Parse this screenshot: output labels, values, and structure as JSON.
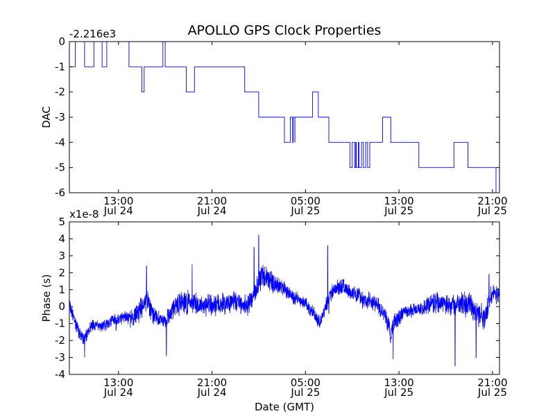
{
  "chart_data": [
    {
      "type": "line",
      "title": "APOLLO GPS Clock Properties",
      "ylabel": "DAC",
      "xlabel": "",
      "offset_label": "-2.216e3",
      "ylim": [
        -6,
        0
      ],
      "yticks": [
        "0",
        "-1",
        "-2",
        "-3",
        "-4",
        "-5",
        "-6"
      ],
      "xticks": [
        {
          "line1": "13:00",
          "line2": "Jul 24"
        },
        {
          "line1": "21:00",
          "line2": "Jul 24"
        },
        {
          "line1": "05:00",
          "line2": "Jul 25"
        },
        {
          "line1": "13:00",
          "line2": "Jul 25"
        },
        {
          "line1": "21:00",
          "line2": "Jul 25"
        }
      ],
      "xlim_hours": [
        8.8,
        45.6
      ],
      "xtick_hours": [
        13,
        21,
        29,
        37,
        45
      ],
      "series": [
        {
          "name": "DAC",
          "color": "#0000ff",
          "steps": [
            [
              8.8,
              -1
            ],
            [
              9.3,
              0
            ],
            [
              10.1,
              -1
            ],
            [
              10.9,
              0
            ],
            [
              11.6,
              -1
            ],
            [
              12.0,
              0
            ],
            [
              13.9,
              -1
            ],
            [
              15.0,
              -2
            ],
            [
              15.2,
              -1
            ],
            [
              16.8,
              0
            ],
            [
              17.0,
              -1
            ],
            [
              18.8,
              -2
            ],
            [
              19.5,
              -1
            ],
            [
              23.8,
              -2
            ],
            [
              25.0,
              -3
            ],
            [
              27.2,
              -4
            ],
            [
              28.1,
              -3
            ],
            [
              29.6,
              -2
            ],
            [
              30.1,
              -3
            ],
            [
              31.0,
              -4
            ],
            [
              32.8,
              -5
            ],
            [
              34.5,
              -4
            ],
            [
              35.6,
              -3
            ],
            [
              36.3,
              -4
            ],
            [
              38.7,
              -5
            ],
            [
              41.7,
              -4
            ],
            [
              42.9,
              -5
            ],
            [
              45.3,
              -6
            ]
          ],
          "glitches": [
            [
              11.9,
              12.6,
              0
            ],
            [
              12.7,
              13.6,
              0
            ],
            [
              19.8,
              20.4,
              -1
            ],
            [
              20.7,
              21.3,
              -1
            ],
            [
              21.5,
              22.2,
              -1
            ],
            [
              22.6,
              23.5,
              -1
            ],
            [
              25.6,
              26.9,
              -3
            ],
            [
              27.7,
              28.0,
              -3
            ],
            [
              31.5,
              32.6,
              -4
            ],
            [
              33.0,
              34.3,
              -4
            ],
            [
              36.8,
              38.4,
              -4
            ],
            [
              38.9,
              39.6,
              -5
            ],
            [
              40.2,
              41.4,
              -5
            ],
            [
              42.0,
              42.6,
              -4
            ]
          ]
        }
      ]
    },
    {
      "type": "line",
      "title": "",
      "ylabel": "Phase (s)",
      "xlabel": "Date (GMT)",
      "offset_label": "x1e-8",
      "ylim": [
        -4,
        5
      ],
      "yticks": [
        "5",
        "4",
        "3",
        "2",
        "1",
        "0",
        "-1",
        "-2",
        "-3",
        "-4"
      ],
      "xticks": [
        {
          "line1": "13:00",
          "line2": "Jul 24"
        },
        {
          "line1": "21:00",
          "line2": "Jul 24"
        },
        {
          "line1": "05:00",
          "line2": "Jul 25"
        },
        {
          "line1": "13:00",
          "line2": "Jul 25"
        },
        {
          "line1": "21:00",
          "line2": "Jul 25"
        }
      ],
      "xlim_hours": [
        8.8,
        45.6
      ],
      "xtick_hours": [
        13,
        21,
        29,
        37,
        45
      ],
      "series": [
        {
          "name": "Phase",
          "color": "#0000ff",
          "baseline": [
            [
              8.8,
              0.2
            ],
            [
              9.4,
              -1.2
            ],
            [
              10.0,
              -2.0
            ],
            [
              10.8,
              -1.0
            ],
            [
              11.5,
              -1.2
            ],
            [
              12.3,
              -0.9
            ],
            [
              13.5,
              -0.6
            ],
            [
              14.2,
              -0.7
            ],
            [
              15.0,
              0.0
            ],
            [
              15.5,
              0.3
            ],
            [
              16.0,
              -0.6
            ],
            [
              17.0,
              -0.8
            ],
            [
              18.0,
              0.1
            ],
            [
              19.0,
              0.3
            ],
            [
              20.0,
              0.1
            ],
            [
              21.0,
              0.0
            ],
            [
              22.0,
              0.2
            ],
            [
              23.0,
              0.3
            ],
            [
              24.0,
              0.0
            ],
            [
              24.6,
              0.7
            ],
            [
              25.3,
              1.8
            ],
            [
              26.0,
              1.6
            ],
            [
              27.0,
              1.1
            ],
            [
              28.0,
              0.6
            ],
            [
              29.0,
              0.2
            ],
            [
              29.6,
              -0.3
            ],
            [
              30.2,
              -1.0
            ],
            [
              30.9,
              0.3
            ],
            [
              31.4,
              1.0
            ],
            [
              32.2,
              1.2
            ],
            [
              33.0,
              0.8
            ],
            [
              34.0,
              0.4
            ],
            [
              35.0,
              0.2
            ],
            [
              35.8,
              -0.5
            ],
            [
              36.3,
              -1.7
            ],
            [
              36.7,
              -0.8
            ],
            [
              37.5,
              -0.3
            ],
            [
              38.5,
              -0.2
            ],
            [
              39.5,
              0.1
            ],
            [
              40.5,
              0.3
            ],
            [
              41.5,
              0.0
            ],
            [
              42.5,
              0.2
            ],
            [
              43.5,
              -0.2
            ],
            [
              44.3,
              -0.7
            ],
            [
              45.0,
              0.8
            ],
            [
              45.6,
              0.6
            ]
          ],
          "noise": [
            [
              8.8,
              0.5
            ],
            [
              11.0,
              0.5
            ],
            [
              13.0,
              0.4
            ],
            [
              15.0,
              0.9
            ],
            [
              16.5,
              0.5
            ],
            [
              18.5,
              0.9
            ],
            [
              21.0,
              0.8
            ],
            [
              24.0,
              0.7
            ],
            [
              25.0,
              0.9
            ],
            [
              28.0,
              0.5
            ],
            [
              30.0,
              0.5
            ],
            [
              33.0,
              0.6
            ],
            [
              36.0,
              0.7
            ],
            [
              38.0,
              0.5
            ],
            [
              41.0,
              0.8
            ],
            [
              43.5,
              0.9
            ],
            [
              45.6,
              0.6
            ]
          ],
          "spikes": [
            [
              10.1,
              -3.0
            ],
            [
              12.8,
              -1.4
            ],
            [
              15.4,
              2.4
            ],
            [
              17.1,
              -2.9
            ],
            [
              19.3,
              2.5
            ],
            [
              24.6,
              3.5
            ],
            [
              25.0,
              4.2
            ],
            [
              30.9,
              3.6
            ],
            [
              31.0,
              -0.4
            ],
            [
              36.5,
              -3.1
            ],
            [
              41.8,
              -3.5
            ],
            [
              43.6,
              -3.0
            ],
            [
              44.7,
              1.9
            ]
          ]
        }
      ]
    }
  ]
}
